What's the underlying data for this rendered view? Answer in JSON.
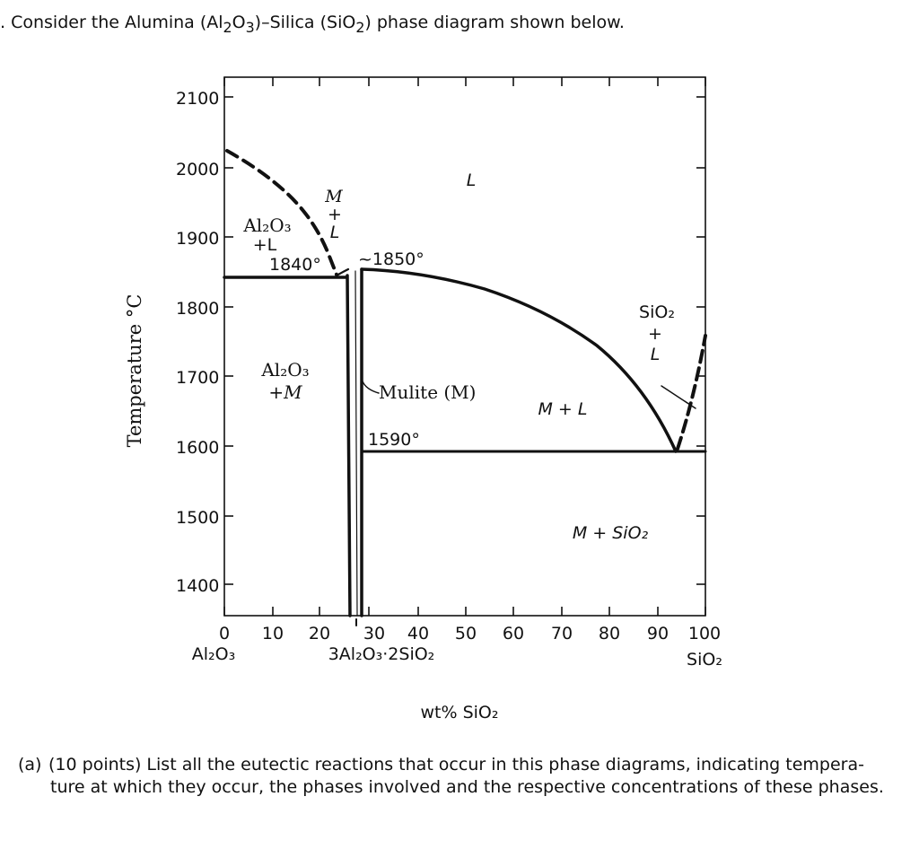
{
  "question": {
    "lead": ". Consider the Alumina (Al",
    "sub1": "2",
    "mid1": "O",
    "sub2": "3",
    "mid2": ")–Silica (SiO",
    "sub3": "2",
    "tail": ") phase diagram shown below."
  },
  "chart_data": {
    "type": "diagram",
    "ylabel": "Temperature °C",
    "xlabel": "wt% SiO₂",
    "y_ticks": [
      "2100",
      "2000",
      "1900",
      "1800",
      "1700",
      "1600",
      "1500",
      "1400"
    ],
    "x_ticks": [
      "0",
      "10",
      "20",
      "30",
      "40",
      "50",
      "60",
      "70",
      "80",
      "90",
      "100"
    ],
    "x_end_labels": {
      "left": "Al₂O₃",
      "compound": "3Al₂O₃·2SiO₂",
      "right": "SiO₂"
    },
    "ylim": [
      1330,
      2100
    ],
    "xlim": [
      0,
      100
    ],
    "regions": {
      "liquid": "L",
      "alumina_liquid": [
        "Al₂O₃",
        "+L"
      ],
      "mullite_liquid": [
        "M",
        "+",
        "L"
      ],
      "alumina_mullite": [
        "Al₂O₃",
        "+M"
      ],
      "mullite_label": "Mulite (M)",
      "m_plus_l": "M + L",
      "silica_liquid": [
        "SiO₂",
        "+",
        "L"
      ],
      "m_plus_sio2": "M + SiO₂"
    },
    "annotations": [
      "1840°",
      "~1850°",
      "1590°"
    ],
    "invariants": [
      {
        "label": "1840°",
        "T": 1840
      },
      {
        "label": "~1850°",
        "T": 1850
      },
      {
        "label": "1590°",
        "T": 1590
      }
    ],
    "liquidus_alumina_side": [
      [
        0,
        2020
      ],
      [
        5,
        1990
      ],
      [
        10,
        1955
      ],
      [
        15,
        1910
      ],
      [
        20,
        1865
      ],
      [
        22,
        1840
      ]
    ],
    "liquidus_silica_side": [
      [
        28,
        1850
      ],
      [
        40,
        1840
      ],
      [
        50,
        1815
      ],
      [
        60,
        1772
      ],
      [
        70,
        1712
      ],
      [
        80,
        1636
      ],
      [
        95,
        1590
      ]
    ],
    "silica_liquidus_dashed": [
      [
        95,
        1590
      ],
      [
        100,
        1725
      ]
    ],
    "mullite_field": [
      [
        25.5,
        1840
      ],
      [
        28,
        1850
      ]
    ],
    "eutectic_1840_line": [
      [
        0,
        1840
      ],
      [
        25.5,
        1840
      ]
    ],
    "eutectic_1590_line": [
      [
        28,
        1590
      ],
      [
        100,
        1590
      ]
    ]
  },
  "part_a": {
    "label": "(a)",
    "line1": "(10 points) List all the eutectic reactions that occur in this phase diagrams, indicating tempera-",
    "line2": "ture at which they occur, the phases involved and the respective concentrations of these phases."
  }
}
